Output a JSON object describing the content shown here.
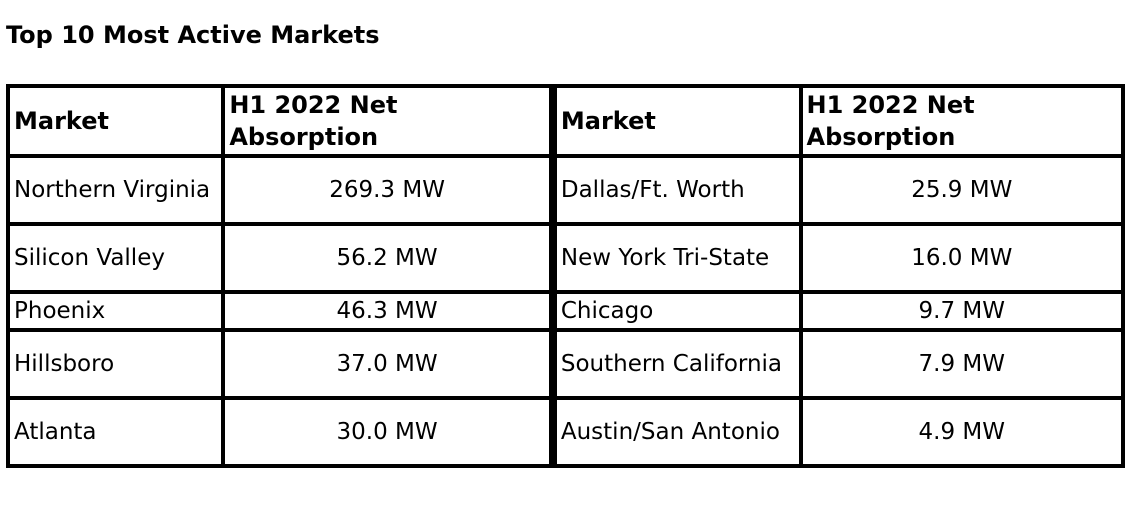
{
  "title": "Top 10 Most Active Markets",
  "table": {
    "headers": [
      "Market",
      "H1 2022 Net Absorption",
      "Market",
      "H1 2022 Net Absorption"
    ],
    "rows": [
      [
        "Northern Virginia",
        "269.3 MW",
        "Dallas/Ft. Worth",
        "25.9 MW"
      ],
      [
        "Silicon Valley",
        "56.2 MW",
        "New York Tri-State",
        "16.0 MW"
      ],
      [
        "Phoenix",
        "46.3 MW",
        "Chicago",
        "9.7 MW"
      ],
      [
        "Hillsboro",
        "37.0 MW",
        "Southern California",
        "7.9 MW"
      ],
      [
        "Atlanta",
        "30.0 MW",
        "Austin/San Antonio",
        "4.9 MW"
      ]
    ]
  }
}
